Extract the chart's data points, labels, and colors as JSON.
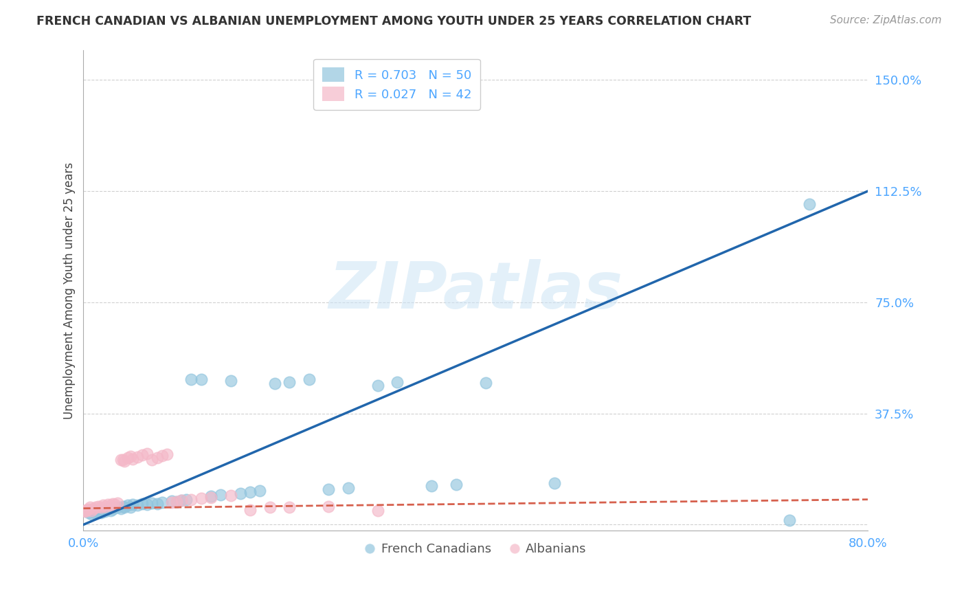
{
  "title": "FRENCH CANADIAN VS ALBANIAN UNEMPLOYMENT AMONG YOUTH UNDER 25 YEARS CORRELATION CHART",
  "source": "Source: ZipAtlas.com",
  "ylabel": "Unemployment Among Youth under 25 years",
  "xlim": [
    0.0,
    0.8
  ],
  "ylim": [
    -0.02,
    1.6
  ],
  "yticks": [
    0.0,
    0.375,
    0.75,
    1.125,
    1.5
  ],
  "ytick_labels": [
    "",
    "37.5%",
    "75.0%",
    "112.5%",
    "150.0%"
  ],
  "xticks": [
    0.0,
    0.16,
    0.32,
    0.48,
    0.64,
    0.8
  ],
  "xtick_labels": [
    "0.0%",
    "",
    "",
    "",
    "",
    "80.0%"
  ],
  "french_canadian_color": "#92c5de",
  "albanian_color": "#f4b8c8",
  "trend_blue_color": "#2166ac",
  "trend_pink_color": "#d6604d",
  "tick_label_color": "#4da6ff",
  "watermark_text": "ZIPatlas",
  "watermark_color": "#cce4f5",
  "legend_fc_label": "R = 0.703   N = 50",
  "legend_al_label": "R = 0.027   N = 42",
  "bottom_legend_fc": "French Canadians",
  "bottom_legend_al": "Albanians",
  "background_color": "#ffffff",
  "grid_color": "#d0d0d0",
  "fc_trend_x": [
    0.0,
    0.8
  ],
  "fc_trend_y": [
    0.0,
    1.125
  ],
  "al_trend_x": [
    0.0,
    0.8
  ],
  "al_trend_y": [
    0.055,
    0.085
  ],
  "french_canadians_x": [
    0.005,
    0.008,
    0.01,
    0.012,
    0.015,
    0.018,
    0.02,
    0.022,
    0.025,
    0.028,
    0.03,
    0.032,
    0.035,
    0.038,
    0.04,
    0.042,
    0.045,
    0.048,
    0.05,
    0.055,
    0.06,
    0.065,
    0.07,
    0.075,
    0.08,
    0.09,
    0.095,
    0.1,
    0.105,
    0.11,
    0.12,
    0.13,
    0.14,
    0.15,
    0.16,
    0.17,
    0.18,
    0.195,
    0.21,
    0.23,
    0.25,
    0.27,
    0.3,
    0.32,
    0.355,
    0.38,
    0.41,
    0.48,
    0.72,
    0.74
  ],
  "french_canadians_y": [
    0.04,
    0.035,
    0.045,
    0.038,
    0.042,
    0.04,
    0.05,
    0.045,
    0.055,
    0.048,
    0.052,
    0.058,
    0.06,
    0.055,
    0.062,
    0.058,
    0.065,
    0.06,
    0.068,
    0.065,
    0.07,
    0.068,
    0.072,
    0.07,
    0.075,
    0.08,
    0.078,
    0.082,
    0.085,
    0.49,
    0.49,
    0.095,
    0.1,
    0.485,
    0.105,
    0.11,
    0.115,
    0.475,
    0.48,
    0.49,
    0.12,
    0.125,
    0.47,
    0.48,
    0.13,
    0.135,
    0.478,
    0.14,
    0.015,
    1.08
  ],
  "albanians_x": [
    0.001,
    0.002,
    0.003,
    0.005,
    0.007,
    0.008,
    0.01,
    0.012,
    0.015,
    0.018,
    0.02,
    0.022,
    0.025,
    0.028,
    0.03,
    0.032,
    0.035,
    0.038,
    0.04,
    0.042,
    0.045,
    0.048,
    0.05,
    0.055,
    0.06,
    0.065,
    0.07,
    0.075,
    0.08,
    0.085,
    0.09,
    0.095,
    0.1,
    0.11,
    0.12,
    0.13,
    0.15,
    0.17,
    0.19,
    0.21,
    0.25,
    0.3
  ],
  "albanians_y": [
    0.048,
    0.045,
    0.05,
    0.052,
    0.058,
    0.048,
    0.055,
    0.06,
    0.062,
    0.058,
    0.065,
    0.062,
    0.068,
    0.065,
    0.07,
    0.068,
    0.072,
    0.218,
    0.22,
    0.215,
    0.225,
    0.23,
    0.222,
    0.228,
    0.235,
    0.24,
    0.218,
    0.225,
    0.232,
    0.238,
    0.075,
    0.078,
    0.082,
    0.085,
    0.088,
    0.092,
    0.098,
    0.05,
    0.058,
    0.06,
    0.062,
    0.048
  ]
}
